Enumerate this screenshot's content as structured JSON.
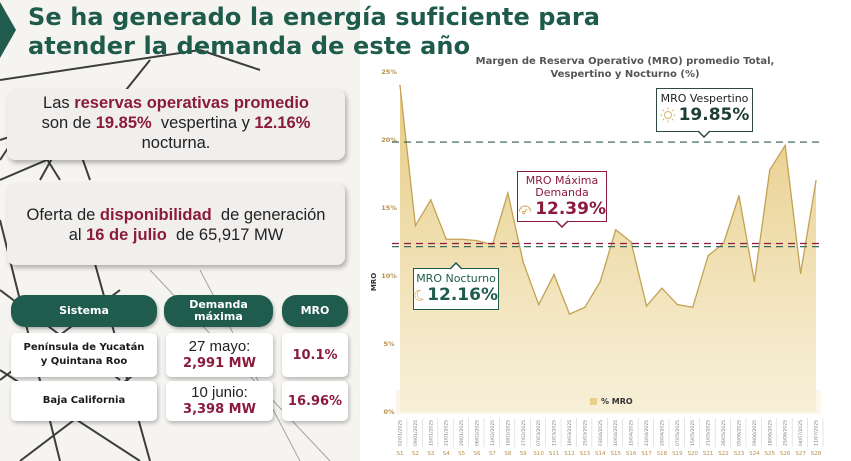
{
  "header": {
    "title_line1": "Se ha generado la energía suficiente para",
    "title_line2": "atender la demanda de este año"
  },
  "card_reserves": {
    "t1": "Las ",
    "t1_hl": "reservas operativas promedio",
    "t2": "son de ",
    "t2_hl": "19.85%",
    "t3": "  vespertina y ",
    "t3_hl": "12.16%",
    "t4": "nocturna."
  },
  "card_offer": {
    "t1": "Oferta de ",
    "t1_hl": "disponibilidad",
    "t2": "  de generación",
    "t3": "al ",
    "t3_hl": "16 de julio",
    "t4": "  de 65,917 MW"
  },
  "table": {
    "headers": [
      "Sistema",
      "Demanda máxima",
      "MRO"
    ],
    "rows": [
      {
        "sistema": "Península de Yucatán y Quintana Roo",
        "fecha": "27 mayo:",
        "demanda": "2,991 MW",
        "mro": "10.1%"
      },
      {
        "sistema": "Baja California",
        "fecha": "10 junio:",
        "demanda": "3,398 MW",
        "mro": "16.96%"
      }
    ]
  },
  "colors": {
    "green": "#1f5c4d",
    "wine": "#8a1b3c",
    "gold": "#c9a558",
    "area": "#e8cf8a"
  },
  "callouts": {
    "vespertino": {
      "label": "MRO Vespertino",
      "value": "19.85%",
      "icon": "sun-icon"
    },
    "max_demanda": {
      "label1": "MRO Máxima",
      "label2": "Demanda",
      "value": "12.39%",
      "icon": "gauge-icon"
    },
    "nocturno": {
      "label": "MRO Nocturno",
      "value": "12.16%",
      "icon": "moon-icon"
    }
  },
  "chart_data": {
    "type": "area",
    "title": "Margen de Reserva Operativo (MRO) promedio Total, Vespertino y Nocturno (%)",
    "xlabel": "",
    "ylabel": "MRO",
    "ylim": [
      0,
      25
    ],
    "yticks": [
      "0%",
      "5%",
      "10%",
      "15%",
      "20%",
      "25%"
    ],
    "ytick_values": [
      0,
      5,
      10,
      15,
      20,
      25
    ],
    "legend": "% MRO",
    "legend_position": "bottom-center",
    "grid": false,
    "categories": [
      "S1",
      "S2",
      "S3",
      "S4",
      "S5",
      "S6",
      "S7",
      "S8",
      "S9",
      "S10",
      "S11",
      "S12",
      "S13",
      "S14",
      "S15",
      "S16",
      "S17",
      "S18",
      "S19",
      "S20",
      "S21",
      "S22",
      "S23",
      "S24",
      "S25",
      "S26",
      "S27",
      "S28"
    ],
    "dates": [
      "02/01/2025",
      "09/01/2025",
      "15/01/2025",
      "21/01/2025",
      "29/01/2025",
      "06/02/2025",
      "13/02/2025",
      "19/02/2025",
      "27/02/2025",
      "07/03/2025",
      "13/03/2025",
      "19/03/2025",
      "25/03/2025",
      "03/04/2025",
      "10/04/2025",
      "15/04/2025",
      "23/04/2025",
      "29/04/2025",
      "07/05/2025",
      "15/05/2025",
      "21/05/2025",
      "26/05/2025",
      "05/06/2025",
      "09/06/2025",
      "18/06/2025",
      "25/06/2025",
      "04/07/2025",
      "11/07/2025"
    ],
    "values": [
      24.0,
      13.7,
      15.6,
      12.7,
      12.7,
      12.6,
      12.3,
      16.1,
      11.0,
      7.9,
      10.1,
      7.2,
      7.7,
      9.6,
      13.4,
      12.5,
      7.8,
      9.1,
      7.9,
      7.7,
      11.5,
      12.4,
      15.9,
      9.6,
      17.8,
      19.6,
      10.2,
      17.0
    ],
    "reference_lines": [
      {
        "name": "MRO Vespertino",
        "value": 19.85,
        "color": "#2e5a4e"
      },
      {
        "name": "MRO Máxima Demanda",
        "value": 12.39,
        "color": "#8a1b3c"
      },
      {
        "name": "MRO Nocturno",
        "value": 12.16,
        "color": "#3d6b5e"
      }
    ]
  }
}
